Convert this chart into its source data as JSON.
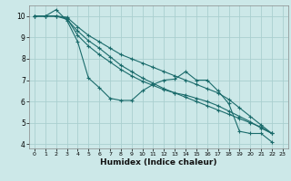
{
  "title": "",
  "xlabel": "Humidex (Indice chaleur)",
  "background_color": "#cce8e8",
  "grid_color": "#aacfcf",
  "line_color": "#1a6b6b",
  "xlim": [
    -0.5,
    23.5
  ],
  "ylim": [
    3.8,
    10.5
  ],
  "yticks": [
    4,
    5,
    6,
    7,
    8,
    9,
    10
  ],
  "xticks": [
    0,
    1,
    2,
    3,
    4,
    5,
    6,
    7,
    8,
    9,
    10,
    11,
    12,
    13,
    14,
    15,
    16,
    17,
    18,
    19,
    20,
    21,
    22,
    23
  ],
  "series": [
    [
      10.0,
      10.0,
      10.3,
      9.8,
      8.8,
      7.1,
      6.65,
      6.15,
      6.05,
      6.05,
      6.5,
      6.8,
      7.0,
      7.05,
      7.4,
      7.0,
      7.0,
      6.5,
      5.9,
      4.6,
      4.5,
      4.5,
      4.1
    ],
    [
      10.0,
      10.0,
      10.0,
      9.85,
      9.3,
      8.85,
      8.5,
      8.1,
      7.7,
      7.4,
      7.1,
      6.85,
      6.6,
      6.4,
      6.2,
      6.0,
      5.8,
      5.6,
      5.4,
      5.2,
      5.0,
      4.8,
      4.5
    ],
    [
      10.0,
      10.0,
      10.0,
      9.9,
      9.1,
      8.6,
      8.2,
      7.85,
      7.5,
      7.2,
      6.95,
      6.75,
      6.55,
      6.4,
      6.3,
      6.15,
      6.0,
      5.8,
      5.55,
      5.3,
      5.05,
      4.75,
      4.5
    ],
    [
      10.0,
      10.0,
      10.0,
      9.95,
      9.5,
      9.1,
      8.8,
      8.5,
      8.2,
      8.0,
      7.8,
      7.6,
      7.4,
      7.2,
      7.0,
      6.8,
      6.6,
      6.4,
      6.1,
      5.7,
      5.3,
      4.9,
      4.5
    ]
  ]
}
